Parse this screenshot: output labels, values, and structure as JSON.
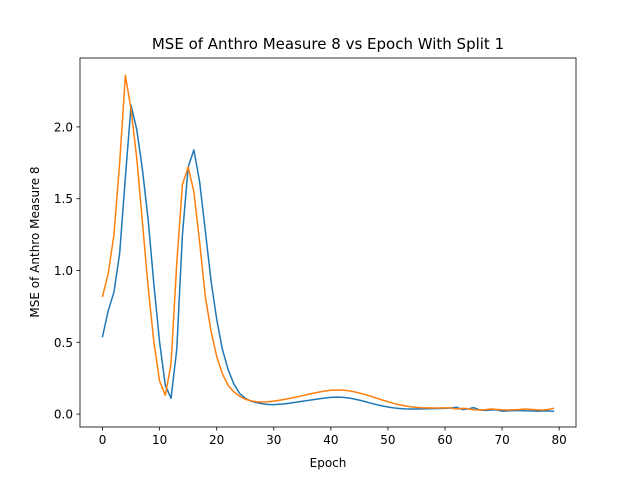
{
  "chart_data": {
    "type": "line",
    "title": "MSE of Anthro Measure 8 vs Epoch With Split 1",
    "xlabel": "Epoch",
    "ylabel": "MSE of Anthro Measure 8",
    "xlim": [
      -3.95,
      82.95
    ],
    "ylim": [
      -0.09,
      2.48
    ],
    "xticks": [
      0,
      10,
      20,
      30,
      40,
      50,
      60,
      70,
      80
    ],
    "yticks": [
      0.0,
      0.5,
      1.0,
      1.5,
      2.0
    ],
    "grid": false,
    "legend": "none",
    "colors": [
      "#1f77b4",
      "#ff7f0e"
    ],
    "x": [
      0,
      1,
      2,
      3,
      4,
      5,
      6,
      7,
      8,
      9,
      10,
      11,
      12,
      13,
      14,
      15,
      16,
      17,
      18,
      19,
      20,
      21,
      22,
      23,
      24,
      25,
      26,
      27,
      28,
      29,
      30,
      31,
      32,
      33,
      34,
      35,
      36,
      37,
      38,
      39,
      40,
      41,
      42,
      43,
      44,
      45,
      46,
      47,
      48,
      49,
      50,
      51,
      52,
      53,
      54,
      55,
      56,
      57,
      58,
      59,
      60,
      61,
      62,
      63,
      64,
      65,
      66,
      67,
      68,
      69,
      70,
      71,
      72,
      73,
      74,
      75,
      76,
      77,
      78,
      79
    ],
    "series": [
      {
        "values": [
          0.54,
          0.72,
          0.85,
          1.12,
          1.65,
          2.15,
          1.98,
          1.7,
          1.35,
          0.9,
          0.5,
          0.2,
          0.11,
          0.45,
          1.25,
          1.72,
          1.84,
          1.62,
          1.28,
          0.93,
          0.66,
          0.45,
          0.31,
          0.21,
          0.145,
          0.11,
          0.09,
          0.08,
          0.072,
          0.067,
          0.066,
          0.068,
          0.072,
          0.077,
          0.083,
          0.089,
          0.095,
          0.101,
          0.107,
          0.112,
          0.116,
          0.118,
          0.117,
          0.113,
          0.106,
          0.097,
          0.087,
          0.076,
          0.066,
          0.057,
          0.049,
          0.043,
          0.039,
          0.036,
          0.035,
          0.035,
          0.036,
          0.037,
          0.038,
          0.039,
          0.04,
          0.042,
          0.048,
          0.032,
          0.035,
          0.045,
          0.03,
          0.025,
          0.028,
          0.03,
          0.02,
          0.022,
          0.024,
          0.025,
          0.023,
          0.022,
          0.02,
          0.021,
          0.022,
          0.02
        ]
      },
      {
        "values": [
          0.82,
          0.98,
          1.25,
          1.75,
          2.36,
          2.12,
          1.78,
          1.33,
          0.88,
          0.5,
          0.23,
          0.13,
          0.35,
          1.05,
          1.6,
          1.72,
          1.55,
          1.2,
          0.82,
          0.58,
          0.4,
          0.28,
          0.2,
          0.155,
          0.125,
          0.104,
          0.092,
          0.086,
          0.084,
          0.086,
          0.09,
          0.096,
          0.103,
          0.111,
          0.119,
          0.128,
          0.137,
          0.146,
          0.154,
          0.161,
          0.166,
          0.168,
          0.167,
          0.163,
          0.156,
          0.147,
          0.136,
          0.124,
          0.111,
          0.098,
          0.086,
          0.075,
          0.065,
          0.057,
          0.051,
          0.047,
          0.044,
          0.043,
          0.042,
          0.042,
          0.043,
          0.043,
          0.035,
          0.04,
          0.038,
          0.03,
          0.028,
          0.03,
          0.035,
          0.033,
          0.03,
          0.028,
          0.03,
          0.032,
          0.035,
          0.033,
          0.03,
          0.028,
          0.032,
          0.04
        ]
      }
    ]
  }
}
